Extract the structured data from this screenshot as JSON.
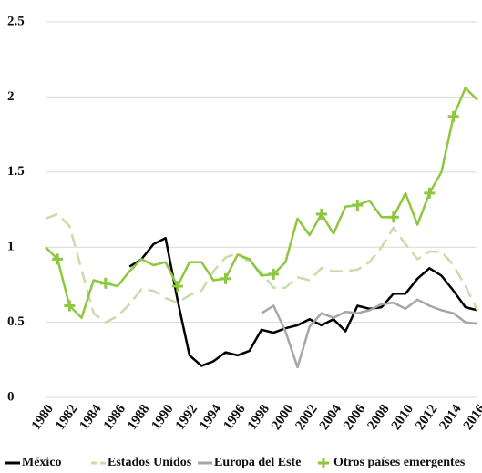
{
  "chart_data": {
    "type": "line",
    "categories": [
      "1980",
      null,
      "1982",
      null,
      "1984",
      null,
      "1986",
      null,
      "1988",
      null,
      "1990",
      null,
      "1992",
      null,
      "1994",
      null,
      "1996",
      null,
      "1998",
      null,
      "2000",
      null,
      "2002",
      null,
      "2004",
      null,
      "2006",
      null,
      "2008",
      null,
      "2010",
      null,
      "2012",
      null,
      "2014",
      null,
      "2016"
    ],
    "series": [
      {
        "name": "México",
        "color": "#000000",
        "dash": "solid",
        "values": [
          null,
          null,
          null,
          null,
          null,
          null,
          null,
          0.87,
          0.92,
          1.02,
          1.06,
          0.65,
          0.28,
          0.21,
          0.24,
          0.3,
          0.28,
          0.31,
          0.45,
          0.43,
          0.46,
          0.48,
          0.52,
          0.48,
          0.52,
          0.44,
          0.61,
          0.59,
          0.6,
          0.69,
          0.69,
          0.79,
          0.86,
          0.81,
          0.71,
          0.6,
          0.58
        ]
      },
      {
        "name": "Estados Unidos",
        "color": "#c9dca8",
        "dash": "dashed",
        "values": [
          1.19,
          1.22,
          1.14,
          0.85,
          0.56,
          0.5,
          0.54,
          0.62,
          0.72,
          0.71,
          0.66,
          0.63,
          0.68,
          0.71,
          0.84,
          0.93,
          0.96,
          0.9,
          0.83,
          0.73,
          0.73,
          0.8,
          0.78,
          0.86,
          0.84,
          0.84,
          0.85,
          0.9,
          1.0,
          1.13,
          1.02,
          0.92,
          0.97,
          0.97,
          0.88,
          0.74,
          0.58
        ]
      },
      {
        "name": "Europa del Este",
        "color": "#a6a6a6",
        "dash": "solid",
        "values": [
          null,
          null,
          null,
          null,
          null,
          null,
          null,
          null,
          null,
          null,
          null,
          null,
          null,
          null,
          null,
          null,
          null,
          null,
          0.56,
          0.61,
          0.44,
          0.2,
          0.47,
          0.56,
          0.53,
          0.57,
          0.56,
          0.58,
          0.62,
          0.63,
          0.59,
          0.65,
          0.61,
          0.58,
          0.56,
          0.5,
          0.49
        ]
      },
      {
        "name": "Otros países emergentes",
        "color": "#8dc63f",
        "dash": "solid",
        "markers": [
          1,
          2,
          5,
          11,
          15,
          19,
          23,
          26,
          29,
          32,
          34
        ],
        "values": [
          1.0,
          0.92,
          0.61,
          0.53,
          0.78,
          0.76,
          0.74,
          0.84,
          0.92,
          0.88,
          0.9,
          0.74,
          0.9,
          0.9,
          0.78,
          0.79,
          0.95,
          0.92,
          0.81,
          0.82,
          0.9,
          1.19,
          1.08,
          1.22,
          1.09,
          1.27,
          1.28,
          1.31,
          1.2,
          1.2,
          1.36,
          1.15,
          1.36,
          1.5,
          1.87,
          2.06,
          1.98
        ]
      }
    ],
    "ylim": [
      0,
      2.5
    ],
    "yticks": [
      0,
      0.5,
      1,
      1.5,
      2,
      2.5
    ],
    "grid": true,
    "legend": "bottom"
  }
}
